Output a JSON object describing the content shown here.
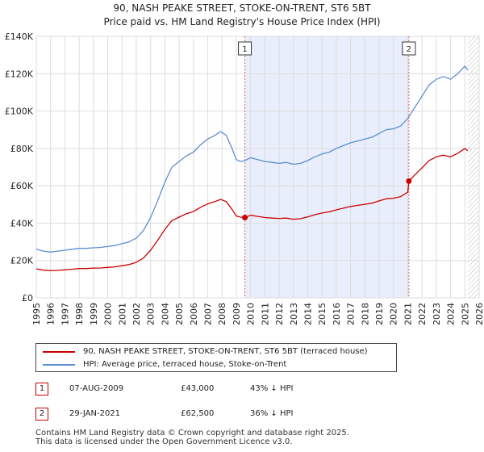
{
  "title_line1": "90, NASH PEAKE STREET, STOKE-ON-TRENT, ST6 5BT",
  "title_line2": "Price paid vs. HM Land Registry's House Price Index (HPI)",
  "colors": {
    "property": "#cc0000",
    "hpi": "#5b8fd0",
    "shade": "#e8eefb",
    "grid": "#dddddd",
    "marker_line": "#e06060"
  },
  "chart_data": {
    "type": "line",
    "title": "Price paid vs. HM Land Registry's House Price Index (HPI)",
    "xlabel": "",
    "ylabel": "",
    "xlim": [
      1995,
      2026
    ],
    "ylim": [
      0,
      140000
    ],
    "y_ticks": [
      0,
      20000,
      40000,
      60000,
      80000,
      100000,
      120000,
      140000
    ],
    "y_tick_labels": [
      "£0",
      "£20K",
      "£40K",
      "£60K",
      "£80K",
      "£100K",
      "£120K",
      "£140K"
    ],
    "x_ticks": [
      1995,
      1996,
      1997,
      1998,
      1999,
      2000,
      2001,
      2002,
      2003,
      2004,
      2005,
      2006,
      2007,
      2008,
      2009,
      2010,
      2011,
      2012,
      2013,
      2014,
      2015,
      2016,
      2017,
      2018,
      2019,
      2020,
      2021,
      2022,
      2023,
      2024,
      2025,
      2026
    ],
    "x_tick_labels": [
      "1995",
      "1996",
      "1997",
      "1998",
      "1999",
      "2000",
      "2001",
      "2002",
      "2003",
      "2004",
      "2005",
      "2006",
      "2007",
      "2008",
      "2009",
      "2010",
      "2011",
      "2012",
      "2013",
      "2014",
      "2015",
      "2016",
      "2017",
      "2018",
      "2019",
      "2020",
      "2021",
      "2022",
      "2023",
      "2024",
      "2025",
      "2026"
    ],
    "shaded_range": [
      2009.6,
      2021.08
    ],
    "hatched_from": 2025.2,
    "series": [
      {
        "name": "HPI: Average price, terraced house, Stoke-on-Trent",
        "color": "#5b8fd0",
        "x": [
          1995.0,
          1995.5,
          1996.0,
          1996.5,
          1997.0,
          1997.5,
          1998.0,
          1998.5,
          1999.0,
          1999.5,
          2000.0,
          2000.5,
          2001.0,
          2001.5,
          2002.0,
          2002.5,
          2003.0,
          2003.5,
          2004.0,
          2004.5,
          2005.0,
          2005.5,
          2006.0,
          2006.5,
          2007.0,
          2007.5,
          2007.9,
          2008.3,
          2008.7,
          2009.0,
          2009.3,
          2009.6,
          2010.0,
          2010.5,
          2011.0,
          2011.5,
          2012.0,
          2012.5,
          2013.0,
          2013.5,
          2014.0,
          2014.5,
          2015.0,
          2015.5,
          2016.0,
          2016.5,
          2017.0,
          2017.5,
          2018.0,
          2018.5,
          2019.0,
          2019.5,
          2020.0,
          2020.5,
          2021.0,
          2021.08,
          2021.5,
          2022.0,
          2022.5,
          2023.0,
          2023.5,
          2024.0,
          2024.5,
          2025.0,
          2025.2
        ],
        "values": [
          26000,
          25000,
          24500,
          25000,
          25500,
          26000,
          26500,
          26500,
          26800,
          27000,
          27500,
          28000,
          29000,
          30000,
          32000,
          36000,
          43000,
          52000,
          62000,
          70000,
          73000,
          76000,
          78000,
          82000,
          85000,
          87000,
          89000,
          87000,
          80000,
          74000,
          73000,
          73500,
          75000,
          74000,
          73000,
          72500,
          72000,
          72500,
          71500,
          72000,
          73500,
          75500,
          77000,
          78000,
          80000,
          81500,
          83000,
          84000,
          85000,
          86000,
          88000,
          90000,
          90500,
          92000,
          96000,
          97000,
          102000,
          108000,
          114000,
          117000,
          118500,
          117000,
          120000,
          124000,
          122000
        ]
      },
      {
        "name": "90, NASH PEAKE STREET, STOKE-ON-TRENT, ST6 5BT (terraced house)",
        "color": "#cc0000",
        "x": [
          1995.0,
          1995.5,
          1996.0,
          1996.5,
          1997.0,
          1997.5,
          1998.0,
          1998.5,
          1999.0,
          1999.5,
          2000.0,
          2000.5,
          2001.0,
          2001.5,
          2002.0,
          2002.5,
          2003.0,
          2003.5,
          2004.0,
          2004.5,
          2005.0,
          2005.5,
          2006.0,
          2006.5,
          2007.0,
          2007.5,
          2007.9,
          2008.3,
          2008.7,
          2009.0,
          2009.3,
          2009.6,
          2010.0,
          2010.5,
          2011.0,
          2011.5,
          2012.0,
          2012.5,
          2013.0,
          2013.5,
          2014.0,
          2014.5,
          2015.0,
          2015.5,
          2016.0,
          2016.5,
          2017.0,
          2017.5,
          2018.0,
          2018.5,
          2019.0,
          2019.5,
          2020.0,
          2020.5,
          2021.0,
          2021.08,
          2021.5,
          2022.0,
          2022.5,
          2023.0,
          2023.5,
          2024.0,
          2024.5,
          2025.0,
          2025.2
        ],
        "values": [
          15500,
          14800,
          14500,
          14700,
          15000,
          15300,
          15700,
          15700,
          15900,
          16000,
          16300,
          16600,
          17200,
          17800,
          19000,
          21300,
          25500,
          30800,
          36700,
          41400,
          43200,
          45000,
          46200,
          48500,
          50300,
          51500,
          52700,
          51500,
          47400,
          43800,
          43200,
          43000,
          44200,
          43600,
          43000,
          42700,
          42500,
          42700,
          42100,
          42400,
          43300,
          44500,
          45400,
          46000,
          47100,
          48000,
          48900,
          49500,
          50100,
          50700,
          51900,
          53000,
          53300,
          54200,
          56600,
          62500,
          65800,
          69600,
          73500,
          75500,
          76400,
          75500,
          77400,
          80000,
          78700
        ]
      }
    ],
    "sale_markers": [
      {
        "label": "1",
        "x": 2009.6,
        "value": 43000
      },
      {
        "label": "2",
        "x": 2021.08,
        "value": 62500
      }
    ]
  },
  "legend": {
    "property_label": "90, NASH PEAKE STREET, STOKE-ON-TRENT, ST6 5BT (terraced house)",
    "hpi_label": "HPI: Average price, terraced house, Stoke-on-Trent"
  },
  "sales": [
    {
      "num": "1",
      "date": "07-AUG-2009",
      "price": "£43,000",
      "hpi": "43% ↓ HPI"
    },
    {
      "num": "2",
      "date": "29-JAN-2021",
      "price": "£62,500",
      "hpi": "36% ↓ HPI"
    }
  ],
  "footer_line1": "Contains HM Land Registry data © Crown copyright and database right 2025.",
  "footer_line2": "This data is licensed under the Open Government Licence v3.0."
}
